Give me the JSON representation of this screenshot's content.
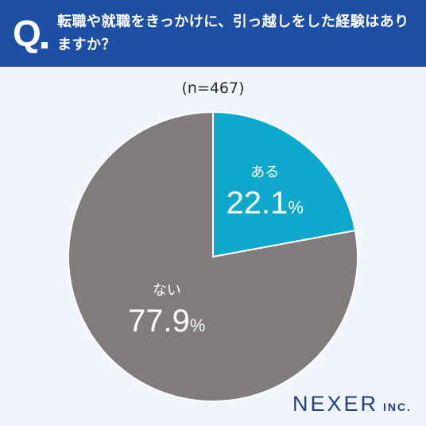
{
  "header": {
    "q_label": "Q",
    "question": "転職や就職をきっかけに、引っ越しをした経験はありますか？"
  },
  "sample": "(n=467)",
  "chart_data": {
    "type": "pie",
    "title": "転職や就職をきっかけに、引っ越しをした経験はありますか？",
    "subtitle": "(n=467)",
    "slices": [
      {
        "label": "ある",
        "value": 22.1,
        "display": "22.1",
        "unit": "%",
        "color": "#0fa8cd"
      },
      {
        "label": "ない",
        "value": 77.9,
        "display": "77.9",
        "unit": "%",
        "color": "#807c7c"
      }
    ]
  },
  "brand": {
    "name": "NEXER",
    "suffix": "INC."
  }
}
